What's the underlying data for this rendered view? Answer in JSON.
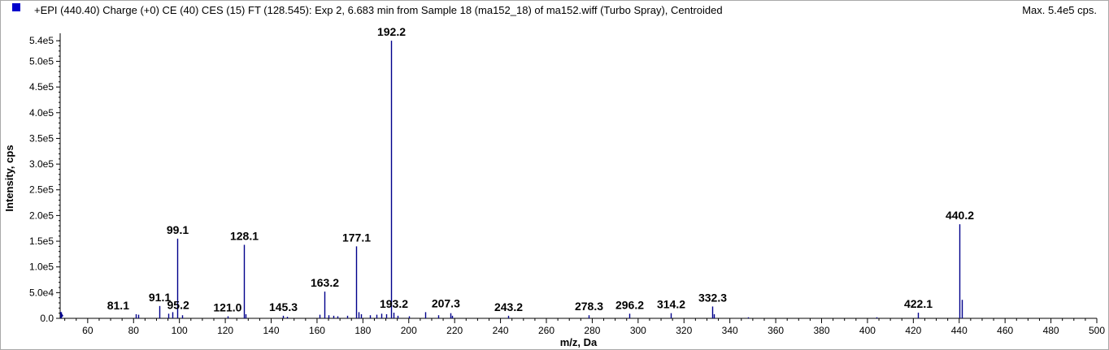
{
  "header": {
    "title": "+EPI (440.40) Charge (+0) CE (40) CES (15) FT (128.545): Exp 2, 6.683 min from Sample 18 (ma152_18) of ma152.wiff (Turbo Spray), Centroided",
    "max_label": "Max. 5.4e5 cps."
  },
  "colors": {
    "series": "#00008b",
    "swatch": "#0000cc",
    "axis": "#000000"
  },
  "chart_data": {
    "type": "bar",
    "xlabel": "m/z, Da",
    "ylabel": "Intensity, cps",
    "xlim": [
      48,
      500
    ],
    "ylim": [
      0,
      545000
    ],
    "x_ticks": [
      60,
      80,
      100,
      120,
      140,
      160,
      180,
      200,
      220,
      240,
      260,
      280,
      300,
      320,
      340,
      360,
      380,
      400,
      420,
      440,
      460,
      480,
      500
    ],
    "y_ticks": [
      {
        "value": 0,
        "label": "0.0"
      },
      {
        "value": 50000,
        "label": "5.0e4"
      },
      {
        "value": 100000,
        "label": "1.0e5"
      },
      {
        "value": 150000,
        "label": "1.5e5"
      },
      {
        "value": 200000,
        "label": "2.0e5"
      },
      {
        "value": 250000,
        "label": "2.5e5"
      },
      {
        "value": 300000,
        "label": "3.0e5"
      },
      {
        "value": 350000,
        "label": "3.5e5"
      },
      {
        "value": 400000,
        "label": "4.0e5"
      },
      {
        "value": 450000,
        "label": "4.5e5"
      },
      {
        "value": 500000,
        "label": "5.0e5"
      },
      {
        "value": 540000,
        "label": "5.4e5"
      }
    ],
    "peaks": [
      {
        "mz": 48.5,
        "intensity": 12000
      },
      {
        "mz": 81.1,
        "intensity": 8000,
        "label": "81.1"
      },
      {
        "mz": 82.0,
        "intensity": 7000
      },
      {
        "mz": 91.1,
        "intensity": 24000,
        "label": "91.1"
      },
      {
        "mz": 95.2,
        "intensity": 9000,
        "label": "95.2"
      },
      {
        "mz": 97.0,
        "intensity": 12000
      },
      {
        "mz": 99.1,
        "intensity": 155000,
        "label": "99.1"
      },
      {
        "mz": 101.0,
        "intensity": 6000
      },
      {
        "mz": 121.0,
        "intensity": 4000,
        "label": "121.0"
      },
      {
        "mz": 128.1,
        "intensity": 143000,
        "label": "128.1"
      },
      {
        "mz": 129.0,
        "intensity": 8000
      },
      {
        "mz": 145.3,
        "intensity": 5000,
        "label": "145.3"
      },
      {
        "mz": 147.0,
        "intensity": 3000
      },
      {
        "mz": 161.0,
        "intensity": 7000
      },
      {
        "mz": 163.2,
        "intensity": 52000,
        "label": "163.2"
      },
      {
        "mz": 165.0,
        "intensity": 6000
      },
      {
        "mz": 167.0,
        "intensity": 5000
      },
      {
        "mz": 169.0,
        "intensity": 4000
      },
      {
        "mz": 173.0,
        "intensity": 5000
      },
      {
        "mz": 177.1,
        "intensity": 140000,
        "label": "177.1"
      },
      {
        "mz": 178.0,
        "intensity": 12000
      },
      {
        "mz": 179.0,
        "intensity": 8000
      },
      {
        "mz": 183.0,
        "intensity": 6000
      },
      {
        "mz": 186.0,
        "intensity": 7000
      },
      {
        "mz": 188.0,
        "intensity": 9000
      },
      {
        "mz": 190.0,
        "intensity": 8000
      },
      {
        "mz": 192.2,
        "intensity": 540000,
        "label": "192.2"
      },
      {
        "mz": 193.2,
        "intensity": 11000,
        "label": "193.2"
      },
      {
        "mz": 195.0,
        "intensity": 5000
      },
      {
        "mz": 200.0,
        "intensity": 4000
      },
      {
        "mz": 207.3,
        "intensity": 12000,
        "label": "207.3"
      },
      {
        "mz": 213.0,
        "intensity": 6000
      },
      {
        "mz": 218.0,
        "intensity": 10000
      },
      {
        "mz": 219.0,
        "intensity": 5000
      },
      {
        "mz": 243.2,
        "intensity": 5000,
        "label": "243.2"
      },
      {
        "mz": 278.3,
        "intensity": 6000,
        "label": "278.3"
      },
      {
        "mz": 296.2,
        "intensity": 9000,
        "label": "296.2"
      },
      {
        "mz": 314.2,
        "intensity": 10000,
        "label": "314.2"
      },
      {
        "mz": 332.3,
        "intensity": 23000,
        "label": "332.3"
      },
      {
        "mz": 333.0,
        "intensity": 8000
      },
      {
        "mz": 348.0,
        "intensity": 2000
      },
      {
        "mz": 404.0,
        "intensity": 2000
      },
      {
        "mz": 422.1,
        "intensity": 11000,
        "label": "422.1"
      },
      {
        "mz": 440.2,
        "intensity": 183000,
        "label": "440.2"
      },
      {
        "mz": 441.2,
        "intensity": 36000
      }
    ]
  }
}
